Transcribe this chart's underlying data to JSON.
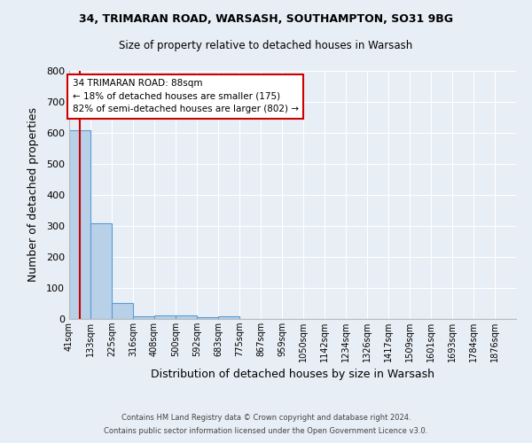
{
  "title_line1": "34, TRIMARAN ROAD, WARSASH, SOUTHAMPTON, SO31 9BG",
  "title_line2": "Size of property relative to detached houses in Warsash",
  "xlabel": "Distribution of detached houses by size in Warsash",
  "ylabel": "Number of detached properties",
  "footnote1": "Contains HM Land Registry data © Crown copyright and database right 2024.",
  "footnote2": "Contains public sector information licensed under the Open Government Licence v3.0.",
  "bin_labels": [
    "41sqm",
    "133sqm",
    "225sqm",
    "316sqm",
    "408sqm",
    "500sqm",
    "592sqm",
    "683sqm",
    "775sqm",
    "867sqm",
    "959sqm",
    "1050sqm",
    "1142sqm",
    "1234sqm",
    "1326sqm",
    "1417sqm",
    "1509sqm",
    "1601sqm",
    "1693sqm",
    "1784sqm",
    "1876sqm"
  ],
  "bin_values": [
    608,
    310,
    52,
    10,
    12,
    12,
    5,
    8,
    0,
    0,
    0,
    0,
    0,
    0,
    0,
    0,
    0,
    0,
    0,
    0,
    0
  ],
  "bar_color": "#b8d0e8",
  "bar_edge_color": "#5b9bd5",
  "property_line_x": 88,
  "bin_edges": [
    41,
    133,
    225,
    316,
    408,
    500,
    592,
    683,
    775,
    867,
    959,
    1050,
    1142,
    1234,
    1326,
    1417,
    1509,
    1601,
    1693,
    1784,
    1876
  ],
  "annotation_text": "34 TRIMARAN ROAD: 88sqm\n← 18% of detached houses are smaller (175)\n82% of semi-detached houses are larger (802) →",
  "annotation_box_color": "#ffffff",
  "annotation_box_edge": "#cc0000",
  "property_line_color": "#cc0000",
  "ylim": [
    0,
    800
  ],
  "bg_color": "#e8eef5",
  "plot_bg_color": "#e8eef5",
  "grid_color": "#ffffff"
}
